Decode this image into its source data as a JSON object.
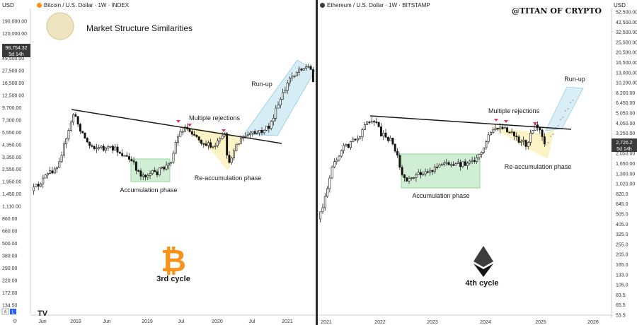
{
  "chart_data": [
    {
      "type": "candlestick",
      "header": "Bitcoin / U.S. Dollar · 1W · INDEX",
      "currency_label": "USD",
      "title": "Market Structure Similarities",
      "y_scale": "log",
      "y_ticks": [
        "190,000.00",
        "120,000.00",
        "63,500.00",
        "49,500.00",
        "27,500.00",
        "16,500.00",
        "12,500.00",
        "9,700.00",
        "7,300.00",
        "5,550.00",
        "4,350.00",
        "3,350.00",
        "2,550.00",
        "1,950.00",
        "1,450.00",
        "1,110.00",
        "860.00",
        "660.00",
        "500.00",
        "380.00",
        "290.00",
        "220.00",
        "172.00",
        "134.50"
      ],
      "price_badge": "98,754.32",
      "countdown_badge": "5d 14h",
      "x_ticks": [
        "Jun",
        "2018",
        "Jun",
        "2019",
        "Jul",
        "2020",
        "Jul",
        "2021"
      ],
      "annotations": {
        "accumulation": "Accumulation phase",
        "reaccumulation": "Re-accumulation phase",
        "rejections": "Multiple rejections",
        "runup": "Run-up"
      },
      "cycle_label": "3rd cycle",
      "colors": {
        "up": "#ffffff",
        "down": "#111111",
        "accumulation": "#cfeed3",
        "reaccumulation": "#fbf1c0",
        "runup": "#d3ecf6",
        "rejection": "#e0325a",
        "logo": "#f7931a"
      }
    },
    {
      "type": "candlestick",
      "header": "Ethereum / U.S. Dollar · 1W · BITSTAMP",
      "currency_label": "USD",
      "watermark": "@TITAN OF CRYPTO",
      "y_scale": "log",
      "y_ticks": [
        "52,500.00",
        "42,500.00",
        "32,500.00",
        "25,500.00",
        "20,500.00",
        "16,500.00",
        "13,000.00",
        "10,200.00",
        "8,200.00",
        "6,450.00",
        "5,050.00",
        "4,050.00",
        "3,250.00",
        "2,550.00",
        "2,050.00",
        "1,650.00",
        "1,300.00",
        "1,020.00",
        "820.0",
        "645.0",
        "505.0",
        "405.0",
        "325.0",
        "255.0",
        "205.0",
        "165.0",
        "133.0",
        "105.0",
        "83.5",
        "65.5",
        "53.5"
      ],
      "price_badge": "2,726.2",
      "countdown_badge": "5d 14h",
      "x_ticks": [
        "2021",
        "2022",
        "2023",
        "2024",
        "2025",
        "2026"
      ],
      "annotations": {
        "accumulation": "Accumulation phase",
        "reaccumulation": "Re-accumulation phase",
        "rejections": "Multiple rejections",
        "runup": "Run-up"
      },
      "cycle_label": "4th cycle",
      "colors": {
        "up": "#ffffff",
        "down": "#111111",
        "accumulation": "#cfeed3",
        "reaccumulation": "#fbf1c0",
        "runup": "#d3ecf6",
        "rejection": "#e0325a",
        "logo": "#3c3c3d"
      }
    }
  ]
}
